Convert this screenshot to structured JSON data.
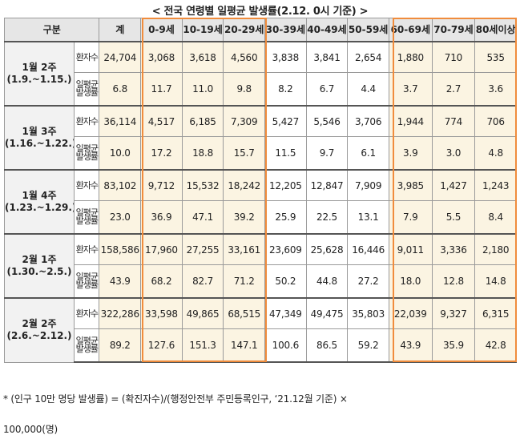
{
  "title": "< 전국 연령별 일평균 발생률(2.12. 0시 기준) >",
  "headers": {
    "gubun": "구분",
    "total": "계",
    "ages": [
      "0-9세",
      "10-19세",
      "20-29세",
      "30-39세",
      "40-49세",
      "50-59세",
      "60-69세",
      "70-79세",
      "80세이상"
    ]
  },
  "metrics": {
    "count": "환자수",
    "rate": "일평균발생률"
  },
  "weeks": [
    {
      "label": "1월 2주",
      "range": "(1.9.~1.15.)",
      "count": [
        "24,704",
        "3,068",
        "3,618",
        "4,560",
        "3,838",
        "3,841",
        "2,654",
        "1,880",
        "710",
        "535"
      ],
      "rate": [
        "6.8",
        "11.7",
        "11.0",
        "9.8",
        "8.2",
        "6.7",
        "4.4",
        "3.7",
        "2.7",
        "3.6"
      ]
    },
    {
      "label": "1월 3주",
      "range": "(1.16.~1.22.)",
      "count": [
        "36,114",
        "4,517",
        "6,185",
        "7,309",
        "5,427",
        "5,546",
        "3,706",
        "1,944",
        "774",
        "706"
      ],
      "rate": [
        "10.0",
        "17.2",
        "18.8",
        "15.7",
        "11.5",
        "9.7",
        "6.1",
        "3.9",
        "3.0",
        "4.8"
      ]
    },
    {
      "label": "1월 4주",
      "range": "(1.23.~1.29.)",
      "count": [
        "83,102",
        "9,712",
        "15,532",
        "18,242",
        "12,205",
        "12,847",
        "7,909",
        "3,985",
        "1,427",
        "1,243"
      ],
      "rate": [
        "23.0",
        "36.9",
        "47.1",
        "39.2",
        "25.9",
        "22.5",
        "13.1",
        "7.9",
        "5.5",
        "8.4"
      ]
    },
    {
      "label": "2월 1주",
      "range": "(1.30.~2.5.)",
      "count": [
        "158,586",
        "17,960",
        "27,255",
        "33,161",
        "23,609",
        "25,628",
        "16,446",
        "9,011",
        "3,336",
        "2,180"
      ],
      "rate": [
        "43.9",
        "68.2",
        "82.7",
        "71.2",
        "50.2",
        "44.8",
        "27.2",
        "18.0",
        "12.8",
        "14.8"
      ]
    },
    {
      "label": "2월 2주",
      "range": "(2.6.~2.12.)",
      "count": [
        "322,286",
        "33,598",
        "49,865",
        "68,515",
        "47,349",
        "49,475",
        "35,803",
        "22,039",
        "9,327",
        "6,315"
      ],
      "rate": [
        "89.2",
        "127.6",
        "151.3",
        "147.1",
        "100.6",
        "86.5",
        "59.2",
        "43.9",
        "35.9",
        "42.8"
      ]
    }
  ],
  "footnote": {
    "line1": "* (인구 10만 명당 발생률) = (확진자수)/(행정안전부 주민등록인구, ‘21.12월 기준) ×",
    "line2": "100,000(명)"
  },
  "colors": {
    "highlight_border": "#f08c3c",
    "highlight_fill": "#fbf4e2",
    "header_fill": "#e6e6e6"
  }
}
